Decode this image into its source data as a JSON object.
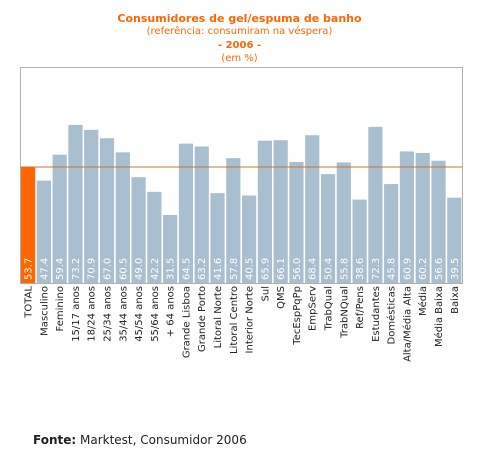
{
  "header": {
    "title": "Consumidores de  gel/espuma de banho",
    "subtitle": "(referência: consumiram na véspera)",
    "year": "- 2006 -",
    "unit": "(em %)"
  },
  "footer": {
    "source_label": "Fonte:",
    "source_text": " Marktest, Consumidor 2006"
  },
  "colors": {
    "bar": "#a9bece",
    "total_bar": "#ff6600",
    "reference_line": "#c87533",
    "title": "#ff6600",
    "plot_border": "#b0b0b0"
  },
  "chart_data": {
    "type": "bar",
    "title": "Consumidores de  gel/espuma de banho",
    "ylim": [
      0,
      100
    ],
    "grid": false,
    "reference_line": 53.7,
    "categories": [
      "TOTAL",
      "Masculino",
      "Feminino",
      "15/17 anos",
      "18/24 anos",
      "25/34 anos",
      "35/44 anos",
      "45/54 anos",
      "55/64 anos",
      "+ 64 anos",
      "Grande Lisboa",
      "Grande Porto",
      "Litoral Norte",
      "Litoral Centro",
      "Interior Norte",
      "Sul",
      "QMS",
      "TecEspPqPp",
      "EmpServ",
      "TrabQual",
      "TrabNQual",
      "Ref/Pens",
      "Estudantes",
      "Domésticas",
      "Alta/Média Alta",
      "Média",
      "Média Baixa",
      "Baixa"
    ],
    "values": [
      53.7,
      47.4,
      59.4,
      73.2,
      70.9,
      67.0,
      60.5,
      49.0,
      42.2,
      31.5,
      64.5,
      63.2,
      41.6,
      57.8,
      40.5,
      65.9,
      66.1,
      56.0,
      68.4,
      50.4,
      55.8,
      38.6,
      72.3,
      45.8,
      60.9,
      60.2,
      56.6,
      39.5
    ],
    "labels": [
      "53.7",
      "47.4",
      "59.4",
      "73.2",
      "70.9",
      "67.0",
      "60.5",
      "49.0",
      "42.2",
      "31.5",
      "64.5",
      "63.2",
      "41.6",
      "57.8",
      "40.5",
      "65.9",
      "66.1",
      "56.0",
      "68.4",
      "50.4",
      "55.8",
      "38.6",
      "72.3",
      "45.8",
      "60.9",
      "60.2",
      "56.6",
      "39.5"
    ]
  }
}
